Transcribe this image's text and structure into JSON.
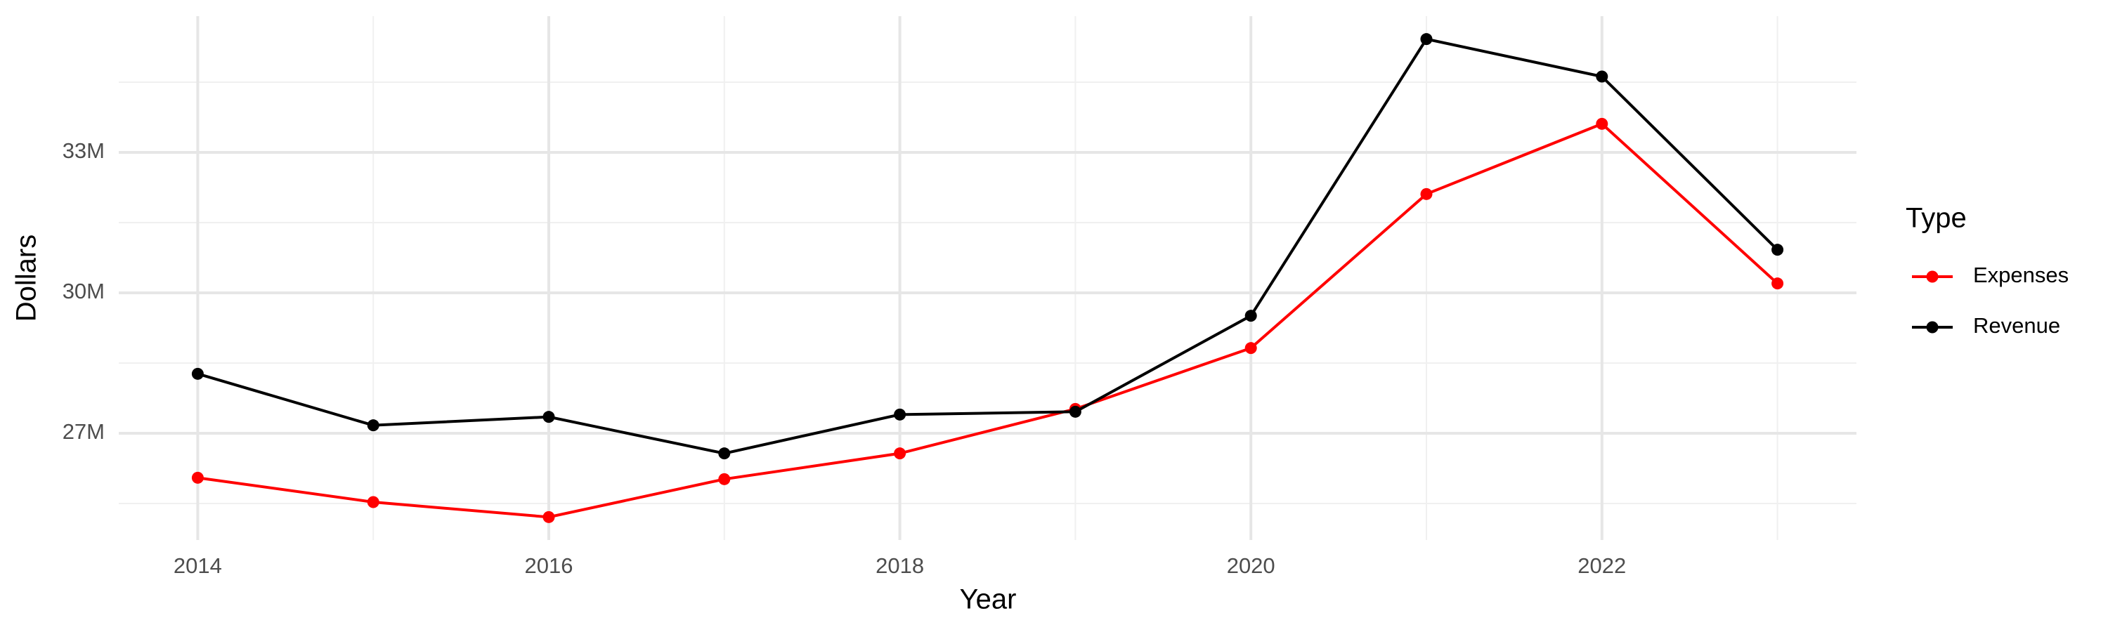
{
  "chart_data": {
    "type": "line",
    "x_label": "Year",
    "y_label": "Dollars",
    "legend_title": "Type",
    "legend_position": "right",
    "grid": true,
    "x": [
      2014,
      2015,
      2016,
      2017,
      2018,
      2019,
      2020,
      2021,
      2022,
      2023
    ],
    "series": [
      {
        "name": "Expenses",
        "color": "#ff0000",
        "values": [
          26050000,
          25530000,
          25210000,
          26020000,
          26570000,
          27520000,
          28820000,
          32110000,
          33610000,
          30200000
        ]
      },
      {
        "name": "Revenue",
        "color": "#000000",
        "values": [
          28270000,
          27170000,
          27350000,
          26570000,
          27400000,
          27460000,
          29510000,
          35420000,
          34620000,
          30920000
        ]
      }
    ],
    "xlim": [
      2013.55,
      2023.45
    ],
    "xticks": [
      2014,
      2016,
      2018,
      2020,
      2022
    ],
    "ylim": [
      24720000,
      35910000
    ],
    "yticks": [
      {
        "value": 27000000,
        "label": "27M"
      },
      {
        "value": 30000000,
        "label": "30M"
      },
      {
        "value": 33000000,
        "label": "33M"
      }
    ]
  }
}
